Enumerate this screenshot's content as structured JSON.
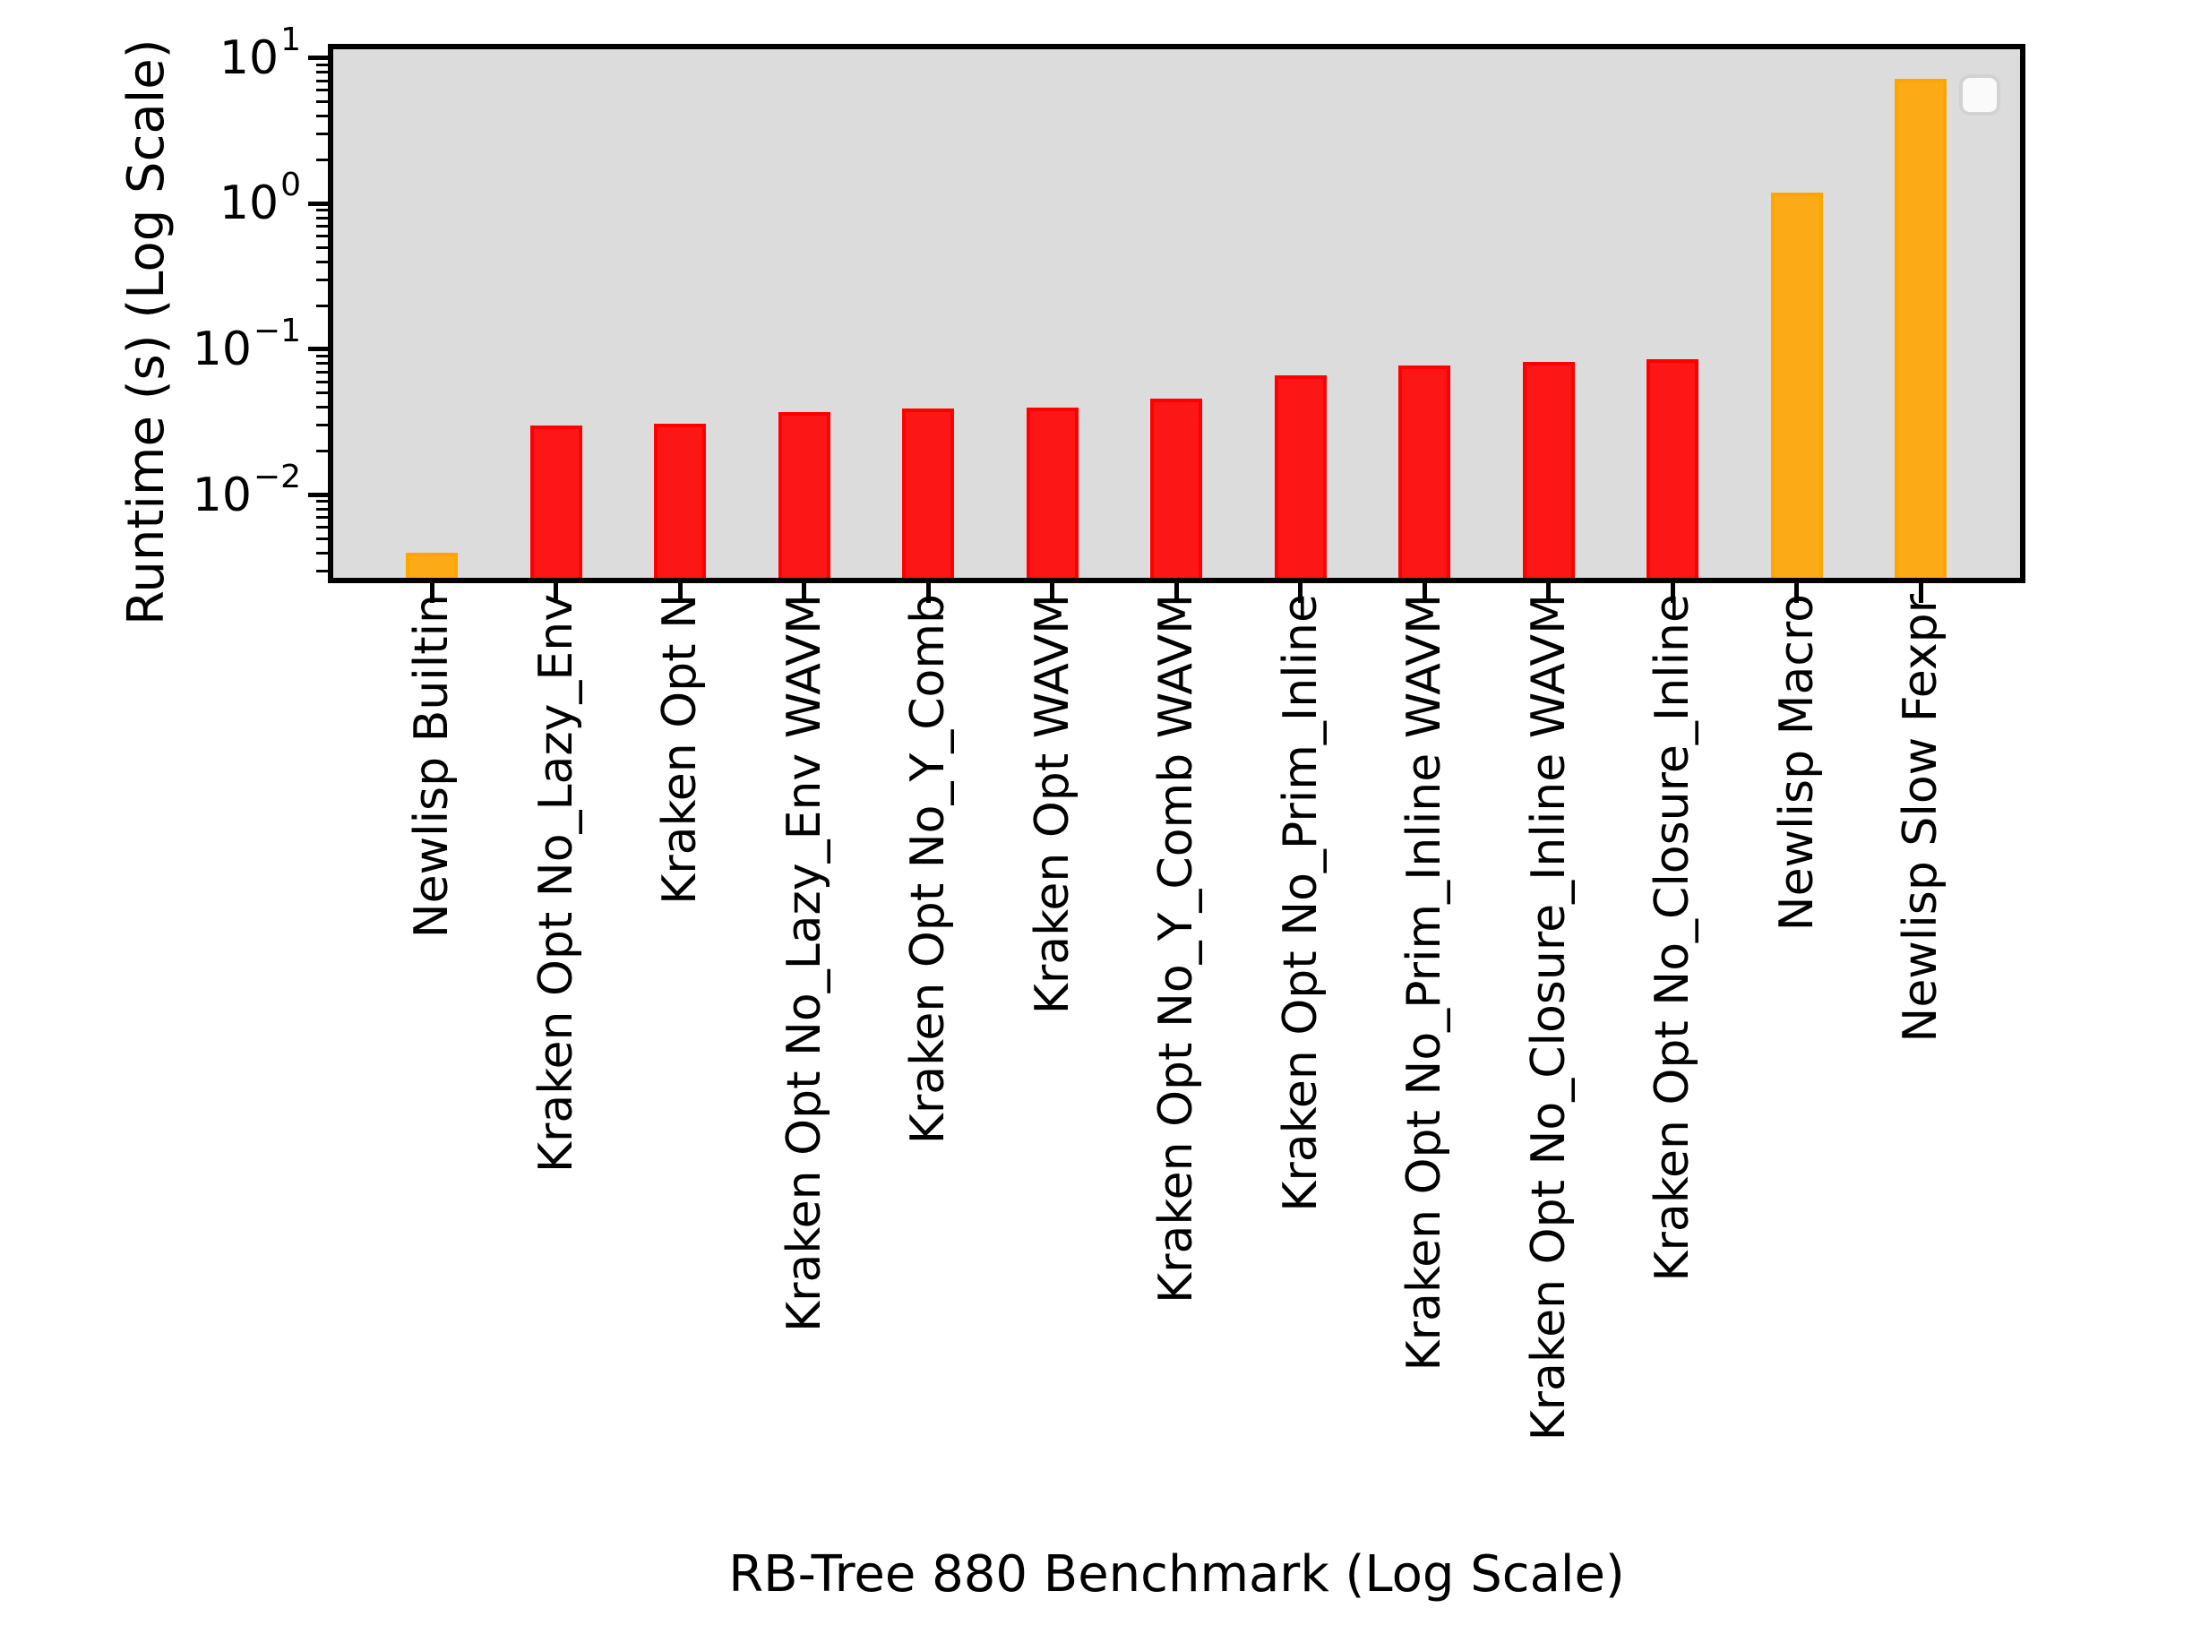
{
  "chart_data": {
    "type": "bar",
    "title": "",
    "xlabel": "RB-Tree 880 Benchmark (Log Scale)",
    "ylabel": "Runtime (s) (Log Scale)",
    "yscale": "log",
    "ylim": [
      0.0027,
      11.5
    ],
    "ytick_exponents": [
      1,
      0,
      -1,
      -2
    ],
    "grid": false,
    "legend_position": "upper right",
    "legend_empty": true,
    "plot_background": "#dcdcdc",
    "palette": {
      "red": "#ff0000",
      "orange": "#ffa500"
    },
    "bar_alpha": 0.9,
    "categories": [
      "Newlisp Builtin",
      "Kraken Opt No_Lazy_Env",
      "Kraken Opt N",
      "Kraken Opt No_Lazy_Env WAVM",
      "Kraken Opt No_Y_Comb",
      "Kraken Opt WAVM",
      "Kraken Opt No_Y_Comb WAVM",
      "Kraken Opt No_Prim_Inline",
      "Kraken Opt No_Prim_Inline WAVM",
      "Kraken Opt No_Closure_Inline WAVM",
      "Kraken Opt No_Closure_Inline",
      "Newlisp Macro",
      "Newlisp Slow Fexpr"
    ],
    "values": [
      0.004,
      0.03,
      0.031,
      0.037,
      0.039,
      0.04,
      0.046,
      0.066,
      0.077,
      0.082,
      0.085,
      1.2,
      7.2
    ],
    "colors": [
      "orange",
      "red",
      "red",
      "red",
      "red",
      "red",
      "red",
      "red",
      "red",
      "red",
      "red",
      "orange",
      "orange"
    ]
  }
}
